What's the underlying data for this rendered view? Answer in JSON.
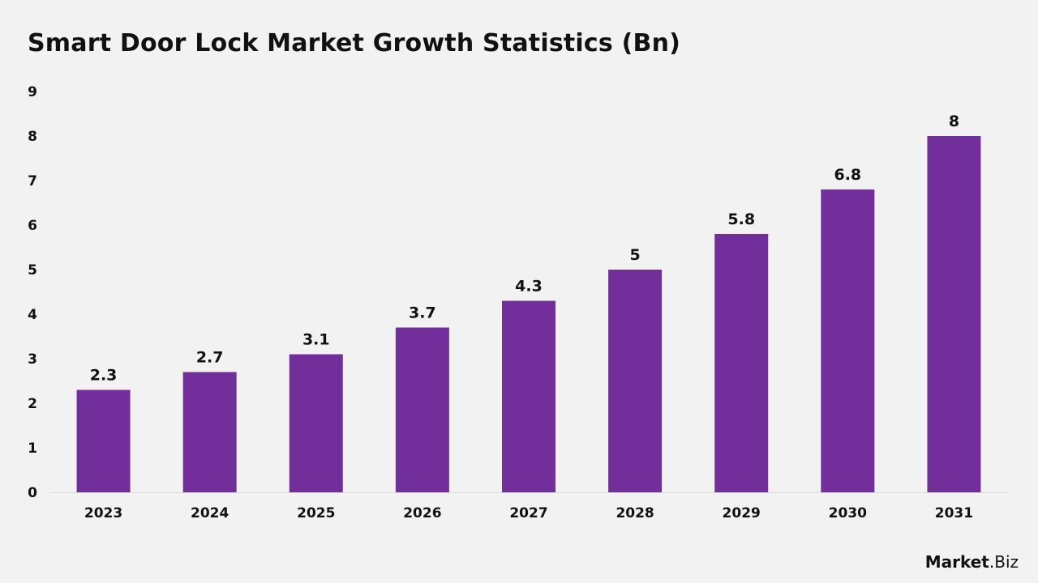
{
  "chart_data": {
    "type": "bar",
    "title": "Smart Door Lock Market Growth Statistics (Bn)",
    "categories": [
      "2023",
      "2024",
      "2025",
      "2026",
      "2027",
      "2028",
      "2029",
      "2030",
      "2031"
    ],
    "values": [
      2.3,
      2.7,
      3.1,
      3.7,
      4.3,
      5,
      5.8,
      6.8,
      8
    ],
    "value_labels": [
      "2.3",
      "2.7",
      "3.1",
      "3.7",
      "4.3",
      "5",
      "5.8",
      "6.8",
      "8"
    ],
    "xlabel": "",
    "ylabel": "",
    "ylim": [
      0,
      9
    ],
    "yticks": [
      "0",
      "1",
      "2",
      "3",
      "4",
      "5",
      "6",
      "7",
      "8",
      "9"
    ],
    "grid": false,
    "legend": "none",
    "bar_color": "#722f9c"
  },
  "branding": {
    "logo_part1": "Market",
    "logo_part2": ".Biz",
    "logo_text": "Market.Biz"
  }
}
